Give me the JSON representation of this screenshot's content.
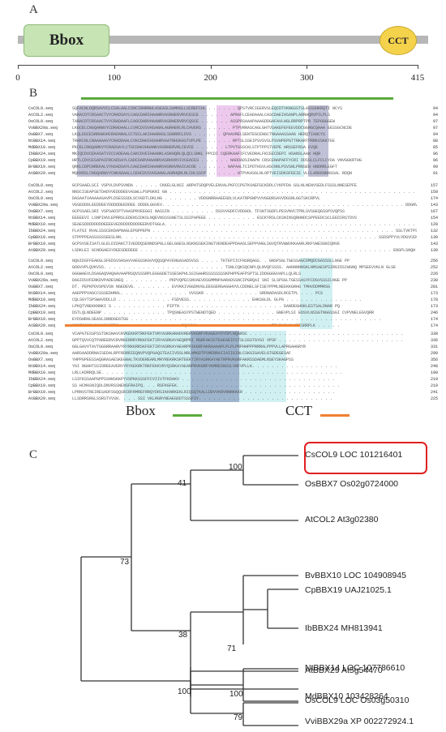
{
  "panels": {
    "a": "A",
    "b": "B",
    "c": "C"
  },
  "panel_a": {
    "domains": {
      "bbox": "Bbox",
      "cct": "CCT"
    },
    "scale_ticks": [
      "0",
      "100",
      "200",
      "300",
      "415"
    ],
    "scale_values": [
      0,
      100,
      200,
      300,
      415
    ],
    "track_length": 415,
    "colors": {
      "track": "#b7b7b7",
      "bbox": "#c6e4b4",
      "cct": "#f5d24c"
    }
  },
  "panel_b": {
    "legend": {
      "bbox": "Bbox",
      "cct": "CCT"
    },
    "colors": {
      "bbox_bar": "#5aaa3a",
      "cct_bar": "#f08030",
      "identical": "#1c1c6e",
      "strong": "#c040c0",
      "similar": "#59c8d0"
    },
    "blocks": [
      {
        "rows": [
          {
            "name": "CsCOL9.seq",
            "res": "SQFACNLDQRSAVVCLCSALAALCSNCIRHRNHLASEASLSAMHSLLSCREFCHL . . . . . . QPSTVRCIEERVSLEQCDTVKNGSSTSLASSSHKRQTI NCYS",
            "pos": "94"
          },
          {
            "name": "AtCOL2.seq",
            "res": "VARACDTCRSAACTVYCRADSAYLCAGCDARIHAANRVASRHERVRVCESCE . . . . . . APRAFLCEADAAALCASCDAEIHSANPLARRHQRVPILPLS",
            "pos": "94"
          },
          {
            "name": "OsCOL9.seq",
            "res": "TARACDTCRSAACTVYCRADAAFLCAGCDARVHAANRVASRHERVRVCQSCE . . . . . . ASSPRSAAAPAAAGDDGAFAVLHGLRRPRPTPR TEPGGGGEW",
            "pos": "97"
          },
          {
            "name": "VvBBX29a.seq",
            "res": "LKGCELCNGQARWVYCDRADAALLCVRCDVSVHSANALAGRHERLRLCHVERS . . . . . . PTPVRRASCAGLGHTVSAKEFEFEEVDDCGGRGCQAAA EESSGCNCDE",
            "pos": "97"
          },
          {
            "name": "OsBBX7.seq",
            "res": "LKQLDSCESRRAWVHCRADARALCCTECLAKIHAARASLSGNRRCLDVS . . . . . . QPAAVRELSENTEGCENGCTNGAAASSAAG HERQTIANCYS",
            "pos": "94"
          },
          {
            "name": "NtBBX14.seq",
            "res": "TRAKCNLCNAAAAAVYCRADDAALCVKCDHHIHSAHRVAATRHSKASTVPLPE . . . . . . RPTSLSSEIPSVSVSLPSVHPEPGTTRKARTPRRKVSKKTEE",
            "pos": "88"
          },
          {
            "name": "MdBBX10.seq",
            "res": "PKCELCNGQARKVYCRADSAYLCTGCDAKVHGANKVASRHERVRLCEVCE . . . . . . LTPVTGSSCKLSTPTPPSTVEPE HRSSEFRSA EVQE",
            "pos": "85"
          },
          {
            "name": "IbBBX24.seq",
            "res": "MKIQCDVCEKASATVICCADEAALCAKCDVEIHAANKLASKHQRLQLQCLSNKL PPCDI CQERKAAFIFCVEDRALFKCEECDEPI HSANSLAAN HQR",
            "pos": "96"
          },
          {
            "name": "CpBBX19.seq",
            "res": "HRTLCDVCESAPAIFRCADSAYLCADCDARVHAANRVASRHVRVIVCEACES . . . . . . NADDADSINAPN CRSCENAPAFFYCRI DDSSLCLFCLCYDA VNVGGKRTHG",
            "pos": "96"
          },
          {
            "name": "BrBBX19.seq",
            "res": "QRKLCDPCNREKALVYHSADSAYLCAGCDARIHAANRVASRHVRAICACOE . . . . . . NAPAALTCIPDTHSVLHSCNNLPSVSNLPRNSEN HNDRRLEGFT",
            "pos": "99"
          },
          {
            "name": "AtBBX29.seq",
            "res": "MQKKRSLCNGQARWVYCNKADAALLCEHCDVSVHSANALAGRHQRLRLCHLSSCP . . . . . . HTPVKASGLNLOPTVEISDKSFEEIE VLCLARKKNNNSSAL RDQN",
            "pos": "91"
          }
        ]
      },
      {
        "rows": [
          {
            "name": "CsCOL9.seq",
            "res": "GCPSAAELSCI VSPVLDVPSVNDA . . . . . CKKELGLNSI ARPHTSDQPVELENVALPKFCCPGTKVAEFGCKDDLCYKPFDA GSLNLNENVSEDLFSSSLNNESEPFE",
            "pos": "157"
          },
          {
            "name": "AtCOL2.seq",
            "res": "NNSCISEAPSETDADVVEDDDEEVASWLLPSPGKNI GN . . . . . . . . . . . . . . . . . . . . . . . . . . . . . . . . . . . . . . . . . . . . . . . . . . . NDTKL",
            "pos": "150"
          },
          {
            "name": "OsCOL9.seq",
            "res": "DASAATVAAAAASAVPLDSESSSDLSCVGDTLDKLNG . . . . . . . VDDGNRRAAEEGDLVLKATRPGNPVVVGGDRSAVVDGSNLGGTSKCRPVL",
            "pos": "174"
          },
          {
            "name": "VvBBX29a.seq",
            "res": "VGSEDDDLEEDDEEYDDDDDEEDDEE DDDDLGGVEV. . . . . . . . . . . . . . . . . . . . . . . . . . . . . . . . . . . . . . . . . . . . . . . . . . DDGNVQVVPSS",
            "pos": "143"
          },
          {
            "name": "OsBBX7.seq",
            "res": "GCPSSAELSRI VSPSADIPTVAASPRVEEGGI NASSIN . . . . . . . . . DSSVVGDFCVDDADL TFSNTSGDFLPESVNVCTPRLSVSGEQGSSPSVQPSS",
            "pos": "167"
          },
          {
            "name": "NtBBX14.seq",
            "res": "EEEEEVI LSNPIHVLEPRRSLEDENSIDKSLNQEVNSSSSNETSLSSIPAPEEE . . . . . . . . . . ESCKYRSLCKSNINSQRHNDCSPPEEDCSCLEEDIRSTDVS",
            "pos": "154"
          },
          {
            "name": "MdBBX10.seq",
            "res": "SEAESDDDDDDDDEEEEVEDDDDDDDDDEERVDTGGLA. . . . . . . . . . . . . . . . . . . . . . . . . . . . . . . . . . . . . . . . . . . . . . . . . . . . DDDANGVVPPSSCCSYT",
            "pos": "128"
          },
          {
            "name": "IbBBX24.seq",
            "res": "FLATGI RVALSSSCEKDAPNAGLEPGPPEPN . . . . . . . . . . . . . . . . . . . . . . . . . . . . . . . . . . . . . . . . . . . . . . . . . . SSLTVKTPS",
            "pos": "132"
          },
          {
            "name": "CpBBX19.seq",
            "res": "STPPPPEASSSSSSEESLNN. . . . . . . . . . . . . . . . . . . . . . . . . . . . . . . . . . . . . . . . . . . . . . . . . . . . . SSDSPPYVLVDGVCENVQHKEDNE",
            "pos": "130"
          },
          {
            "name": "BrBBX19.seq",
            "res": "GCPSVSEISATLGLELDIDAKCTIVEDDQSENNDSPGLLGELGGESLNSKNSSEKINGTVENDEAPPDAASLSEPPVHGLSGVQTRVWWVKKAARLRKFVWESGNIQNVE",
            "pos": "143"
          },
          {
            "name": "AtBBX29.seq",
            "res": "LSDKLEI GCNDGAESYDEESDEDEEE . . . . . . . . . . . . . . . . . . . . . . . . . . . . . . . . . . . . . . . . . . . . . . . . . . . . ENSPLSNQH",
            "pos": "130"
          }
        ]
      },
      {
        "rows": [
          {
            "name": "CsCOL9.seq",
            "res": "NQGIDSFFEAKGLSFEDSVSHSAVVAEGSSKGVVQQSQPAYENGASADSVSS . . . . TKTEPIICFNSRQAGS. . GNSPSGLTGESSAGCDMQDCGASSSLLNGE PP",
            "pos": "256"
          },
          {
            "name": "AtCOL2.seq",
            "res": "GDGVVPLQVKVSS. . . . . . . . . . . . . . . . . . . . . . . . . TSNLCQKSQCNPLQLNVQFSSSS. AHGNNNNSKLNMSAESPSIRGIDSIWGNQ MPSEEVVKLN GLSE",
            "pos": "252"
          },
          {
            "name": "OsCOL9.seq",
            "res": "GGGWAEVLDSAGAQVHQAAVAAPRSQVSSSRPLEGGGDETSSESKPHLSSIGAHRSSSSSSSSKPHPPEAFPSPTSLIDDGGGGVAPLLQLRLS",
            "pos": "226"
          },
          {
            "name": "VvBBX29a.seq",
            "res": "DAGIDSVFENKDVPADESNEQ . . . . . . . . . PKPVQPECSNVAEVDSGMMNPAARADSSNCIPGRQAI SNI SLSPSGLTGESSASYFCDGVSSSILNGE PP",
            "pos": "230"
          },
          {
            "name": "OsBBX7.seq",
            "res": "DT. PEPKPDVSPEVSN NGEDEVG. . . . . . . . EVVKKIVGGDNVGLEEGSERGAGGHVVLCDDNELSFISEYPPMLNEEKKGRHG TMHVDDMMRSG",
            "pos": "281"
          },
          {
            "name": "NtBBX14.seq",
            "res": "AAEPPPVAGCCSSSEDHMAL. . . . . . . . . . . . . . VVSSKR . . . . . . . . . . . SRDNADASDLRCETPL . . . PCS",
            "pos": "173"
          },
          {
            "name": "MdBBX10.seq",
            "res": "CQLSGYTSPSWAVDDLLD . . . . . . . . . . . FSDVESS. . . . . . . . . . . . . EHKSGLDL GLPG . . . . . . . . . . . . . . . .",
            "pos": "178"
          },
          {
            "name": "IbBBX24.seq",
            "res": "LPKQTVNEKKNNKI S . . . . . . . . . . . PIPTN . . . . . . . . . . . . . . . . . . . . . DANDEGHOKLESTSALDNAR PQ",
            "pos": "173"
          },
          {
            "name": "CpBBX19.seq",
            "res": "DSTLQLNDEENP . . . . . . . . . . . . . TPQSNEASYPSTWENDTQED . . . . . . . . . . . . GNEVPLSI EDSVLNSSGTNGGSSGI CVPVNELEGVQRR",
            "pos": "246"
          },
          {
            "name": "BrBBX19.seq",
            "res": "EYDSHRALSEASLSNNDGEGTGG . . . . . . . . . . . . . . . . . . . . . . . . . . . . . . . . . . . . . . . . . . . . . . . . . . . .",
            "pos": "174"
          },
          {
            "name": "AtBBX29.seq",
            "res": "SGSFSSSSLSKAYSVSERG. . . . . . . . . . . . . DQVVKK . . . . . . . . . . . . . . . TRLDLDLNLSDESRRPLK . . . . .",
            "pos": "174"
          }
        ]
      },
      {
        "rows": [
          {
            "name": "CsCOL9.seq",
            "res": "VCAPGTESSPSSTDKSNAVCRVKEKKRTRKFEKTVRYASRKARADVRERVKGRFVKAGEAYDYDPLNQARSC . . . . . . . . . . . . . . . . . . . . . . . . . . . . . . . .",
            "pos": "338"
          },
          {
            "name": "AtCOL2.seq",
            "res": "GPPTQVVCQTPAREERVCRVRKERRRYRKKFEKTIRYASRKAYAEQRPRI RGRFAKIETEAEAEIFSTSLSSSTGYGI VPSF . . . . . . . . . . . . . . . . . . . . . . . . . .",
            "pos": "336"
          },
          {
            "name": "OsCOL9.seq",
            "res": "GGLGAVVTAVTGGGRRAARVYRYRKKRRSKFEKTIRYASRKAYAEARPRIKGRFAKRAAAAPLPLPLPRPHHPPPRRRALPPPVLLAPRGAHGRYR",
            "pos": "331"
          },
          {
            "name": "VvBBX29a.seq",
            "res": "AARSAADDRNAISEDALRPFRDRRIEQNVPVQPGAQSTEAIIVDSLNRLNMGDTPSMERRAIIAIIGINLCSKGIGAVELGTGDEGESAF",
            "pos": "299"
          },
          {
            "name": "OsBBX7.seq",
            "res": "YHPPGPEESSAQGRASAESKEGNALTKVDEREARLMRYREKRKSRTEEKTIRYASRKAYAETRPRVKGRFAKRSSDAEMLNSEYSKAGPSS",
            "pos": "356"
          },
          {
            "name": "NtBBX14.seq",
            "res": "YGI NGHHTSSIDREEAVERVYRYKEKRKTRKFEKKVRYQSRKAYAEARPRVKGRFVKMRESNSSLVNFVPLLK. . . . . . . . . . . . . . . . . .",
            "pos": "248"
          },
          {
            "name": "MdBBX10.seq",
            "res": "LRLLKDRRQLSE. . . . . . . . . . . . . . . . . . . . . . . . . . . . . . . . . . . . . . . . . . . . . . . . . .",
            "pos": "190"
          },
          {
            "name": "IbBBX24.seq",
            "res": "LSIFKSSAAPGPPSSNNSKKPYVSPKKSSSFFCVIIVTFKDAKV . . . . . . . . . . . . . . . . . . . . . . . . . . . . . . . .",
            "pos": "219"
          },
          {
            "name": "CpBBX19.seq",
            "res": "SS HCMASNIQDLDNVRSSNENSFRAIPQ. . . RSFKGFEK. . . . . . . . . . . . . . . . . . . . . . . . . . . . . . . . . .",
            "pos": "210"
          },
          {
            "name": "BrBBX19.seq",
            "res": "LPRNVSTREIRESADFSGQQSRIRFRMREFRRQYDRSIKKNRKEKLRIQSQTKALLDDVVKRVNNRKKKR . . . . . . . . . . . . . . . . . . .",
            "pos": "241"
          },
          {
            "name": "AtBBX29.seq",
            "res": "LLSDRRSRGLSSRSTVVSN. . . . SSI VKLRGRYNEAEGDDTSSSFSY. . . . . . . . . . . . . . . . . . . . . . . . . . . .",
            "pos": "225"
          }
        ]
      }
    ]
  },
  "panel_c": {
    "taxa": [
      {
        "label": "CsCOL9 LOC 101216401"
      },
      {
        "label": "OsBBX7 Os02g0724000"
      },
      {
        "label": "AtCOL2 At3g02380"
      },
      {
        "label": "BvBBX10 LOC 104908945"
      },
      {
        "label": "CpBBX19 UAJ21025.1"
      },
      {
        "label": "IbBBX24 MH813941"
      },
      {
        "label": "NtBBX14 LOC 107786610"
      },
      {
        "label": "OsCOL9 LOC Os03g50310"
      },
      {
        "label": "AtBBX29 At5g54470"
      },
      {
        "label": "MdBBX10 103428264"
      },
      {
        "label": "VviBBX29a XP 002272924.1"
      }
    ],
    "bootstrap": [
      "100",
      "41",
      "73",
      "38",
      "71",
      "100",
      "100",
      "79"
    ],
    "highlight_color": "#e02020"
  }
}
